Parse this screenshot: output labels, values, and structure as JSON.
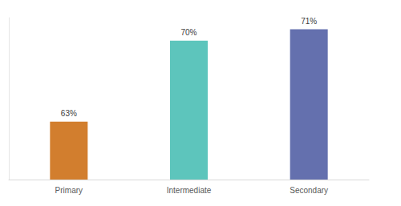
{
  "chart_data": {
    "type": "bar",
    "categories": [
      "Primary",
      "Intermediate",
      "Secondary"
    ],
    "values": [
      63,
      70,
      71
    ],
    "value_labels": [
      "63%",
      "70%",
      "71%"
    ],
    "colors": [
      "#d27e2e",
      "#5dc5bc",
      "#6470ae"
    ],
    "ylim": [
      58,
      72
    ],
    "grid": false,
    "data_labels": true,
    "tick_labels": "x"
  }
}
